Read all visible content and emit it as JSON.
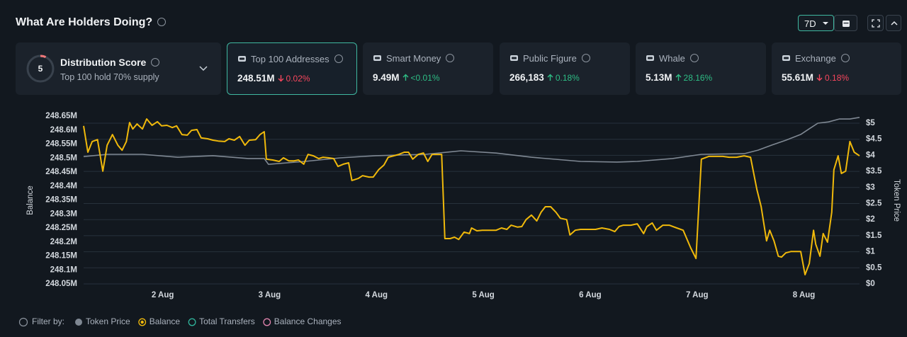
{
  "header": {
    "title": "What Are Holders Doing?",
    "range_button": "7D"
  },
  "distribution": {
    "score": 5,
    "title": "Distribution Score",
    "subtitle": "Top 100 hold 70% supply"
  },
  "cards": [
    {
      "label": "Top 100 Addresses",
      "value": "248.51M",
      "change": "0.02%",
      "direction": "down",
      "selected": true
    },
    {
      "label": "Smart Money",
      "value": "9.49M",
      "change": "<0.01%",
      "direction": "up",
      "selected": false
    },
    {
      "label": "Public Figure",
      "value": "266,183",
      "change": "0.18%",
      "direction": "up",
      "selected": false
    },
    {
      "label": "Whale",
      "value": "5.13M",
      "change": "28.16%",
      "direction": "up",
      "selected": false
    },
    {
      "label": "Exchange",
      "value": "55.61M",
      "change": "0.18%",
      "direction": "down",
      "selected": false
    }
  ],
  "chart_data": {
    "type": "line",
    "y_label": "Balance",
    "y2_label": "Token Price",
    "grid": true,
    "xlim": [
      1.26,
      8.52
    ],
    "xticks": [
      {
        "value": 2,
        "label": "2 Aug"
      },
      {
        "value": 3,
        "label": "3 Aug"
      },
      {
        "value": 4,
        "label": "4 Aug"
      },
      {
        "value": 5,
        "label": "5 Aug"
      },
      {
        "value": 6,
        "label": "6 Aug"
      },
      {
        "value": 7,
        "label": "7 Aug"
      },
      {
        "value": 8,
        "label": "8 Aug"
      }
    ],
    "ylim": [
      248.05,
      248.65
    ],
    "yticks": [
      {
        "value": 248.65,
        "label": "248.65M"
      },
      {
        "value": 248.6,
        "label": "248.6M"
      },
      {
        "value": 248.55,
        "label": "248.55M"
      },
      {
        "value": 248.5,
        "label": "248.5M"
      },
      {
        "value": 248.45,
        "label": "248.45M"
      },
      {
        "value": 248.4,
        "label": "248.4M"
      },
      {
        "value": 248.35,
        "label": "248.35M"
      },
      {
        "value": 248.3,
        "label": "248.3M"
      },
      {
        "value": 248.25,
        "label": "248.25M"
      },
      {
        "value": 248.2,
        "label": "248.2M"
      },
      {
        "value": 248.15,
        "label": "248.15M"
      },
      {
        "value": 248.1,
        "label": "248.1M"
      },
      {
        "value": 248.05,
        "label": "248.05M"
      }
    ],
    "y2lim": [
      0,
      5
    ],
    "y2ticks": [
      {
        "value": 5,
        "label": "$5"
      },
      {
        "value": 4.5,
        "label": "$4.5"
      },
      {
        "value": 4,
        "label": "$4"
      },
      {
        "value": 3.5,
        "label": "$3.5"
      },
      {
        "value": 3,
        "label": "$3"
      },
      {
        "value": 2.5,
        "label": "$2.5"
      },
      {
        "value": 2,
        "label": "$2"
      },
      {
        "value": 1.5,
        "label": "$1.5"
      },
      {
        "value": 1,
        "label": "$1"
      },
      {
        "value": 0.5,
        "label": "$0.5"
      },
      {
        "value": 0,
        "label": "$0"
      }
    ],
    "series": [
      {
        "name": "Token Price",
        "color": "#7f8893",
        "axis": "y2",
        "x": [
          1.26,
          1.48,
          1.81,
          2.14,
          2.47,
          2.8,
          2.95,
          2.99,
          3.33,
          3.66,
          3.99,
          4.46,
          4.79,
          5.12,
          5.45,
          5.91,
          6.25,
          6.44,
          6.77,
          7.04,
          7.44,
          7.57,
          7.7,
          7.83,
          7.97,
          8.07,
          8.13,
          8.23,
          8.33,
          8.43,
          8.52
        ],
        "values": [
          3.96,
          4.03,
          4.03,
          3.94,
          3.99,
          3.9,
          3.9,
          3.72,
          3.81,
          3.92,
          3.99,
          4.03,
          4.14,
          4.07,
          3.94,
          3.81,
          3.79,
          3.81,
          3.9,
          4.03,
          4.05,
          4.16,
          4.32,
          4.47,
          4.65,
          4.87,
          5.0,
          5.04,
          5.13,
          5.13,
          5.18
        ]
      },
      {
        "name": "Balance",
        "color": "#f0b90b",
        "x": [
          1.26,
          1.3,
          1.34,
          1.39,
          1.44,
          1.48,
          1.53,
          1.58,
          1.62,
          1.66,
          1.69,
          1.72,
          1.76,
          1.81,
          1.85,
          1.9,
          1.95,
          1.99,
          2.04,
          2.09,
          2.13,
          2.18,
          2.23,
          2.27,
          2.32,
          2.36,
          2.42,
          2.47,
          2.52,
          2.58,
          2.62,
          2.67,
          2.72,
          2.77,
          2.81,
          2.87,
          2.91,
          2.95,
          2.97,
          3.03,
          3.09,
          3.13,
          3.18,
          3.23,
          3.27,
          3.32,
          3.36,
          3.41,
          3.46,
          3.5,
          3.55,
          3.6,
          3.64,
          3.69,
          3.74,
          3.77,
          3.83,
          3.87,
          3.93,
          3.97,
          4.02,
          4.07,
          4.11,
          4.16,
          4.21,
          4.26,
          4.3,
          4.34,
          4.39,
          4.44,
          4.48,
          4.52,
          4.58,
          4.61,
          4.64,
          4.69,
          4.73,
          4.77,
          4.82,
          4.87,
          4.89,
          4.94,
          4.99,
          5.05,
          5.12,
          5.17,
          5.22,
          5.26,
          5.32,
          5.36,
          5.4,
          5.45,
          5.5,
          5.54,
          5.58,
          5.63,
          5.68,
          5.72,
          5.78,
          5.81,
          5.86,
          5.91,
          5.98,
          6.05,
          6.11,
          6.18,
          6.23,
          6.27,
          6.31,
          6.38,
          6.44,
          6.5,
          6.53,
          6.58,
          6.62,
          6.68,
          6.74,
          6.81,
          6.87,
          6.94,
          6.99,
          7.04,
          7.11,
          7.17,
          7.24,
          7.3,
          7.37,
          7.44,
          7.5,
          7.56,
          7.6,
          7.65,
          7.68,
          7.72,
          7.76,
          7.79,
          7.83,
          7.88,
          7.97,
          8.01,
          8.05,
          8.09,
          8.11,
          8.15,
          8.18,
          8.22,
          8.26,
          8.28,
          8.32,
          8.35,
          8.39,
          8.43,
          8.47,
          8.52
        ],
        "values": [
          248.615,
          248.521,
          248.559,
          248.566,
          248.453,
          248.546,
          248.584,
          248.546,
          248.528,
          248.559,
          248.627,
          248.604,
          248.622,
          248.604,
          248.64,
          248.617,
          248.63,
          248.615,
          248.617,
          248.609,
          248.615,
          248.584,
          248.582,
          248.599,
          248.602,
          248.572,
          248.569,
          248.564,
          248.561,
          248.559,
          248.569,
          248.564,
          248.577,
          248.546,
          248.564,
          248.566,
          248.584,
          248.594,
          248.496,
          248.493,
          248.488,
          248.501,
          248.49,
          248.49,
          248.493,
          248.478,
          248.513,
          248.508,
          248.498,
          248.503,
          248.501,
          248.498,
          248.47,
          248.478,
          248.483,
          248.42,
          248.427,
          248.437,
          248.432,
          248.432,
          248.458,
          248.475,
          248.503,
          248.508,
          248.513,
          248.521,
          248.521,
          248.496,
          248.513,
          248.518,
          248.488,
          248.513,
          248.513,
          248.513,
          248.212,
          248.212,
          248.217,
          248.209,
          248.235,
          248.23,
          248.25,
          248.24,
          248.242,
          248.242,
          248.242,
          248.25,
          248.245,
          248.26,
          248.253,
          248.255,
          248.28,
          248.296,
          248.275,
          248.306,
          248.326,
          248.326,
          248.306,
          248.285,
          248.28,
          248.225,
          248.242,
          248.245,
          248.245,
          248.245,
          248.25,
          248.245,
          248.237,
          248.255,
          248.26,
          248.26,
          248.265,
          248.23,
          248.255,
          248.268,
          248.242,
          248.26,
          248.26,
          248.25,
          248.242,
          248.179,
          248.141,
          248.496,
          248.506,
          248.506,
          248.506,
          248.503,
          248.503,
          248.508,
          248.503,
          248.387,
          248.326,
          248.204,
          248.242,
          248.204,
          248.149,
          248.146,
          248.161,
          248.166,
          248.166,
          248.083,
          248.123,
          248.242,
          248.192,
          248.149,
          248.23,
          248.199,
          248.306,
          248.458,
          248.508,
          248.445,
          248.453,
          248.559,
          248.521,
          248.508
        ]
      }
    ],
    "filter": {
      "label": "Filter by:",
      "options": [
        {
          "name": "Total Transfers",
          "color": "#2fb39a"
        },
        {
          "name": "Balance Changes",
          "color": "#e083ad"
        }
      ]
    }
  }
}
